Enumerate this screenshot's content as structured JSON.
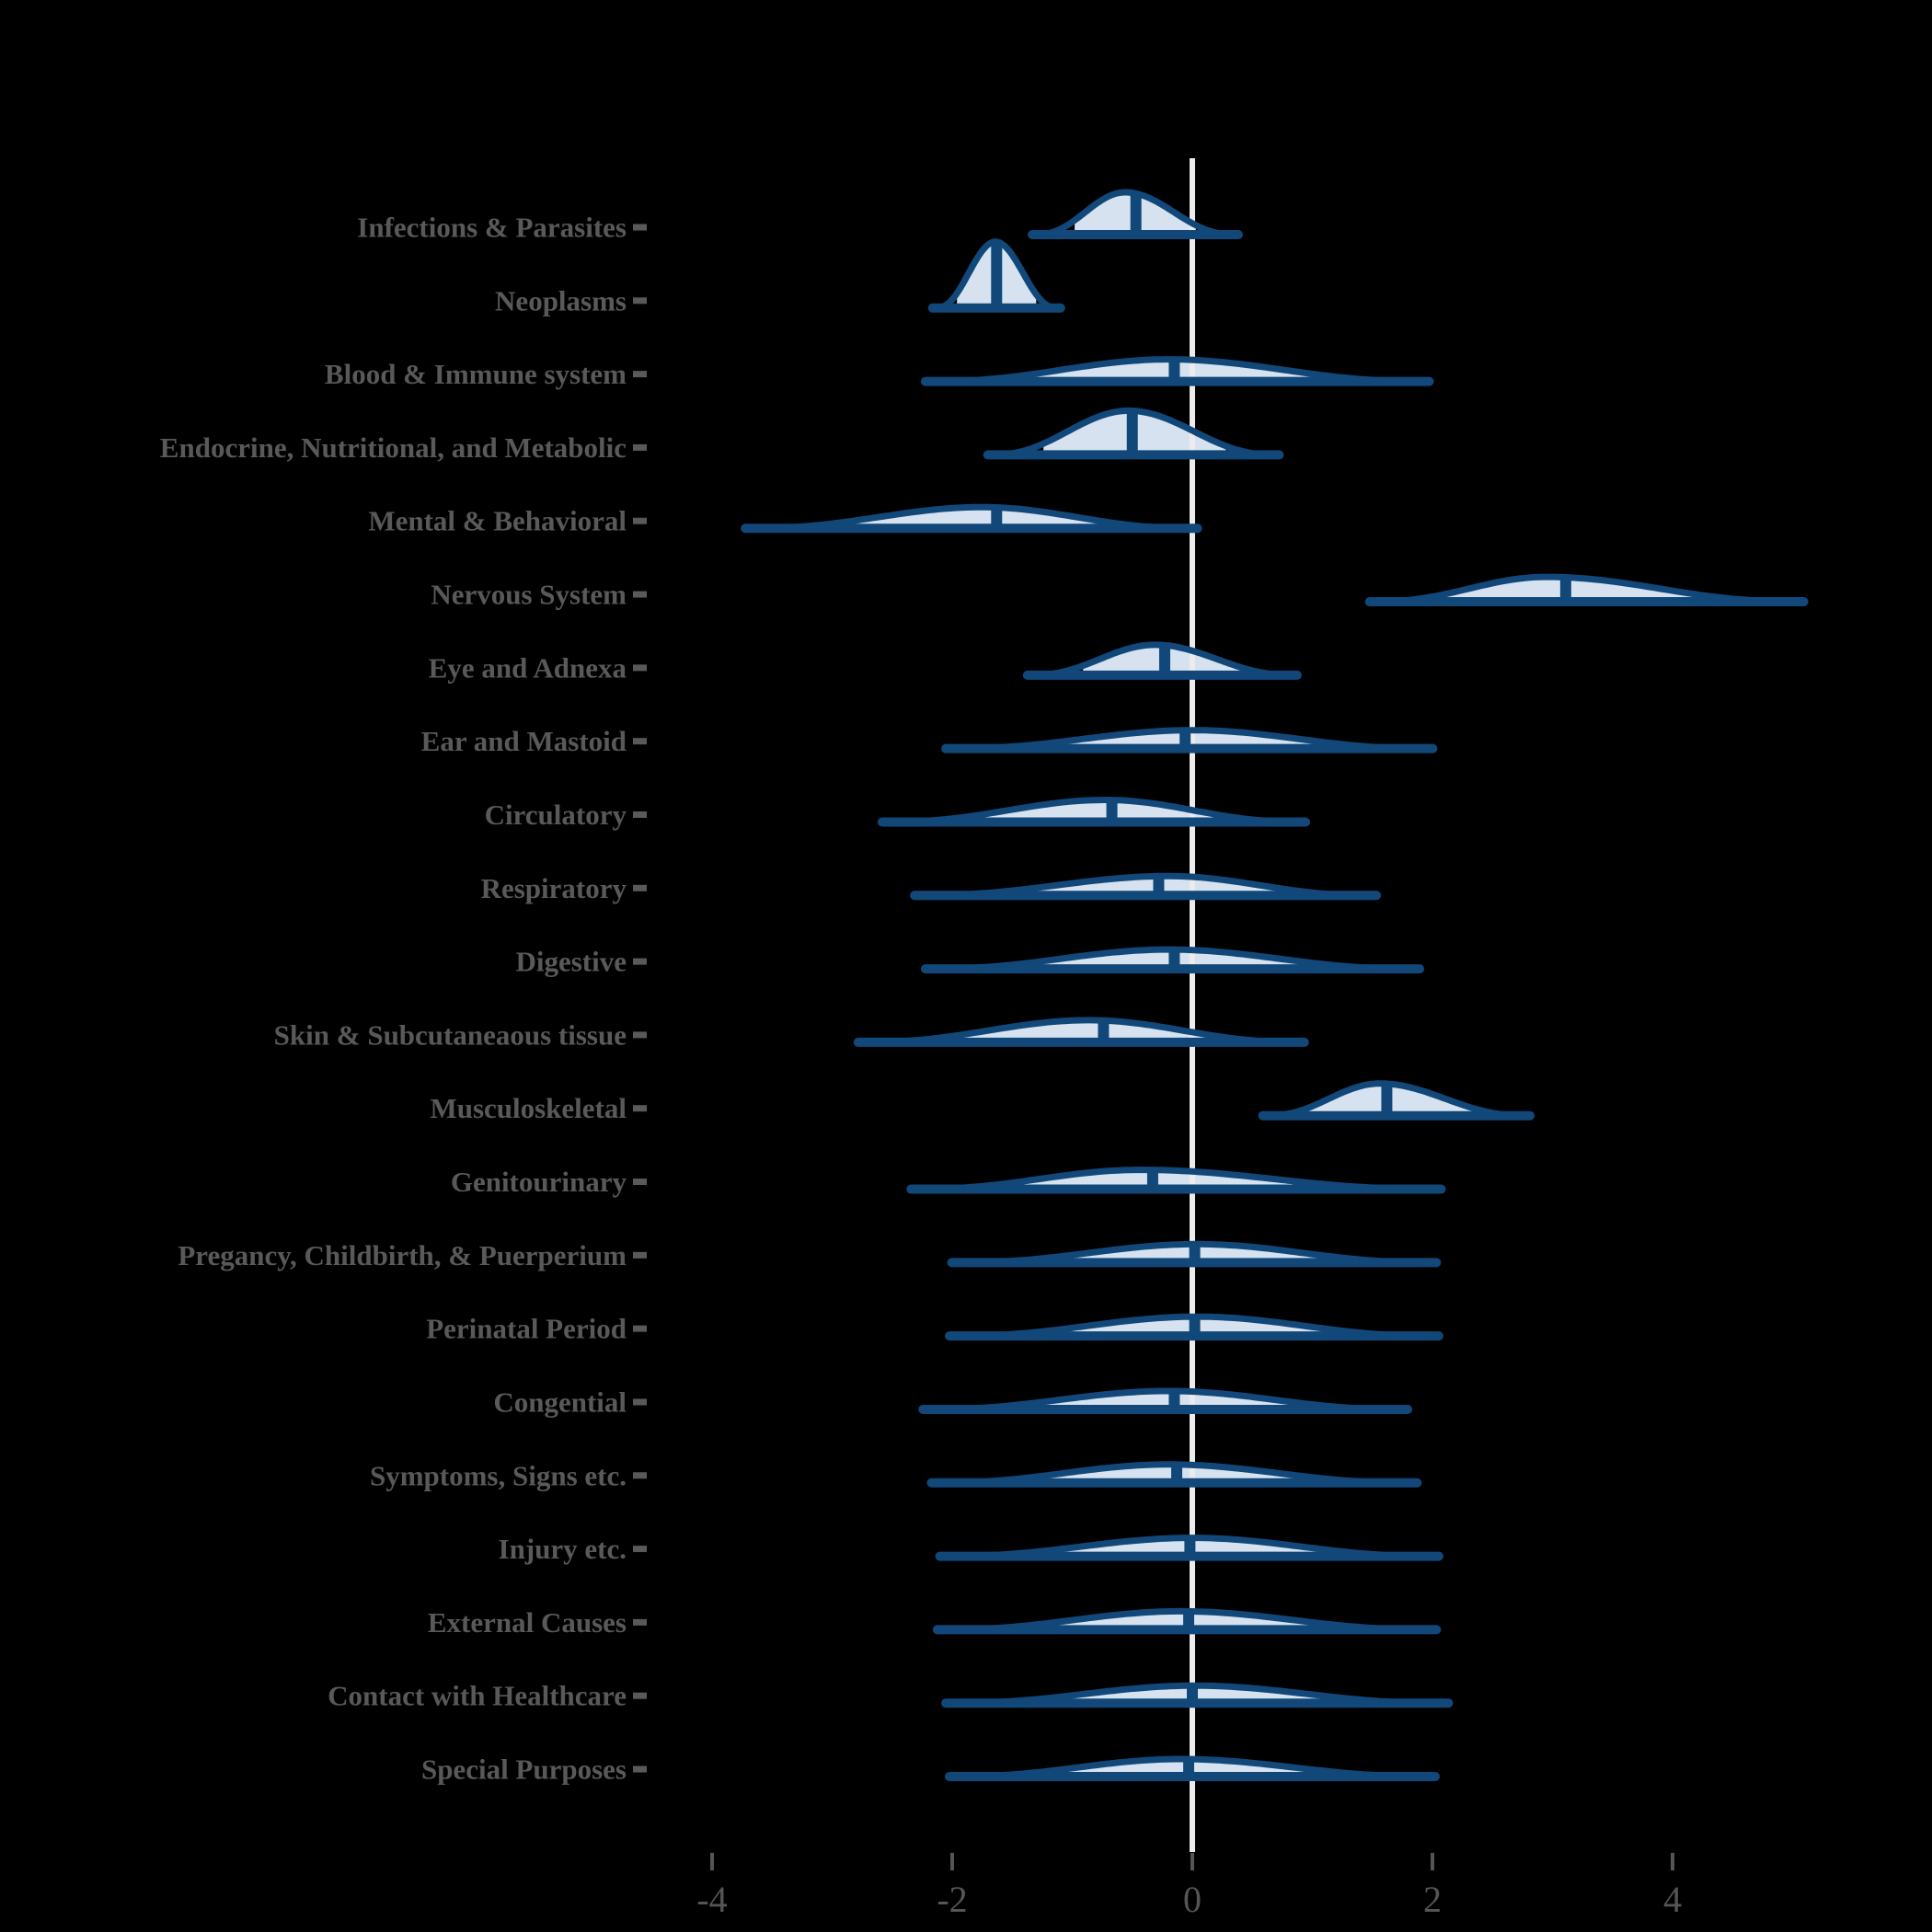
{
  "chart_data": {
    "type": "area",
    "variant": "ridgeline_density_halfeye",
    "title": "",
    "xlabel": "",
    "ylabel": "",
    "x_axis": {
      "ticks": [
        -4,
        -2,
        0,
        2,
        4
      ],
      "zero_reference_line": 0,
      "xlim": [
        -5.7,
        6.1
      ]
    },
    "legend": "none",
    "grid": "off",
    "categories": [
      {
        "label": "Infections & Parasites",
        "median": -0.47,
        "interval": [
          -0.98,
          0.03
        ],
        "range": [
          -1.31,
          0.36
        ],
        "peak": -0.56,
        "amp": 46
      },
      {
        "label": "Neoplasms",
        "median": -1.63,
        "interval": [
          -1.96,
          -1.3
        ],
        "range": [
          -2.14,
          -1.12
        ],
        "peak": -1.64,
        "amp": 72
      },
      {
        "label": "Blood & Immune system",
        "median": -0.15,
        "interval": [
          -1.4,
          1.16
        ],
        "range": [
          -2.2,
          1.95
        ],
        "peak": -0.2,
        "amp": 24
      },
      {
        "label": "Endocrine, Nutritional, and Metabolic",
        "median": -0.5,
        "interval": [
          -1.24,
          0.28
        ],
        "range": [
          -1.68,
          0.7
        ],
        "peak": -0.53,
        "amp": 48
      },
      {
        "label": "Mental & Behavioral",
        "median": -1.63,
        "interval": [
          -2.92,
          -0.54
        ],
        "range": [
          -3.7,
          0.02
        ],
        "peak": -1.75,
        "amp": 23
      },
      {
        "label": "Nervous System",
        "median": 3.11,
        "interval": [
          2.08,
          4.31
        ],
        "range": [
          1.5,
          5.07
        ],
        "peak": 2.95,
        "amp": 27
      },
      {
        "label": "Eye and Adnexa",
        "median": -0.23,
        "interval": [
          -0.91,
          0.46
        ],
        "range": [
          -1.35,
          0.85
        ],
        "peak": -0.31,
        "amp": 33
      },
      {
        "label": "Ear and Mastoid",
        "median": -0.06,
        "interval": [
          -1.3,
          1.23
        ],
        "range": [
          -2.03,
          1.98
        ],
        "peak": 0.0,
        "amp": 20
      },
      {
        "label": "Circulatory",
        "median": -0.67,
        "interval": [
          -1.82,
          0.33
        ],
        "range": [
          -2.56,
          0.92
        ],
        "peak": -0.72,
        "amp": 24
      },
      {
        "label": "Respiratory",
        "median": -0.28,
        "interval": [
          -1.48,
          0.77
        ],
        "range": [
          -2.29,
          1.51
        ],
        "peak": -0.2,
        "amp": 21
      },
      {
        "label": "Digestive",
        "median": -0.15,
        "interval": [
          -1.46,
          1.09
        ],
        "range": [
          -2.2,
          1.87
        ],
        "peak": -0.2,
        "amp": 21
      },
      {
        "label": "Skin & Subcutaneaous tissue",
        "median": -0.74,
        "interval": [
          -1.95,
          0.28
        ],
        "range": [
          -2.76,
          0.91
        ],
        "peak": -0.86,
        "amp": 24
      },
      {
        "label": "Musculoskeletal",
        "median": 1.62,
        "interval": [
          0.96,
          2.37
        ],
        "range": [
          0.61,
          2.79
        ],
        "peak": 1.56,
        "amp": 35
      },
      {
        "label": "Genitourinary",
        "median": -0.33,
        "interval": [
          -1.59,
          0.84
        ],
        "range": [
          -2.32,
          2.05
        ],
        "peak": -0.43,
        "amp": 21
      },
      {
        "label": "Pregancy, Childbirth, & Puerperium",
        "median": 0.02,
        "interval": [
          -1.24,
          1.27
        ],
        "range": [
          -1.98,
          2.01
        ],
        "peak": 0.04,
        "amp": 20
      },
      {
        "label": "Perinatal Period",
        "median": 0.02,
        "interval": [
          -1.2,
          1.27
        ],
        "range": [
          -2.0,
          2.03
        ],
        "peak": 0.04,
        "amp": 21
      },
      {
        "label": "Congential",
        "median": -0.15,
        "interval": [
          -1.43,
          1.08
        ],
        "range": [
          -2.22,
          1.77
        ],
        "peak": -0.2,
        "amp": 20
      },
      {
        "label": "Symptoms, Signs etc.",
        "median": -0.13,
        "interval": [
          -1.36,
          1.13
        ],
        "range": [
          -2.15,
          1.85
        ],
        "peak": -0.2,
        "amp": 20
      },
      {
        "label": "Injury etc.",
        "median": -0.02,
        "interval": [
          -1.31,
          1.27
        ],
        "range": [
          -2.08,
          2.03
        ],
        "peak": 0.0,
        "amp": 20
      },
      {
        "label": "External Causes",
        "median": -0.03,
        "interval": [
          -1.29,
          1.13
        ],
        "range": [
          -2.1,
          2.01
        ],
        "peak": -0.1,
        "amp": 20
      },
      {
        "label": "Contact with Healthcare",
        "median": 0.0,
        "interval": [
          -1.27,
          1.3
        ],
        "range": [
          -2.03,
          2.11
        ],
        "peak": 0.02,
        "amp": 19
      },
      {
        "label": "Special Purposes",
        "median": -0.03,
        "interval": [
          -1.22,
          1.13
        ],
        "range": [
          -2.0,
          2.0
        ],
        "peak": -0.1,
        "amp": 19
      }
    ],
    "tick_labels": [
      "-4",
      "-2",
      "0",
      "2",
      "4"
    ]
  },
  "colors": {
    "background": "#000000",
    "slab_fill": "#D6E2EF",
    "outline": "#114879",
    "zero_line": "#ECECEC",
    "category_label": "#595959",
    "axis_tick": "#555555"
  }
}
